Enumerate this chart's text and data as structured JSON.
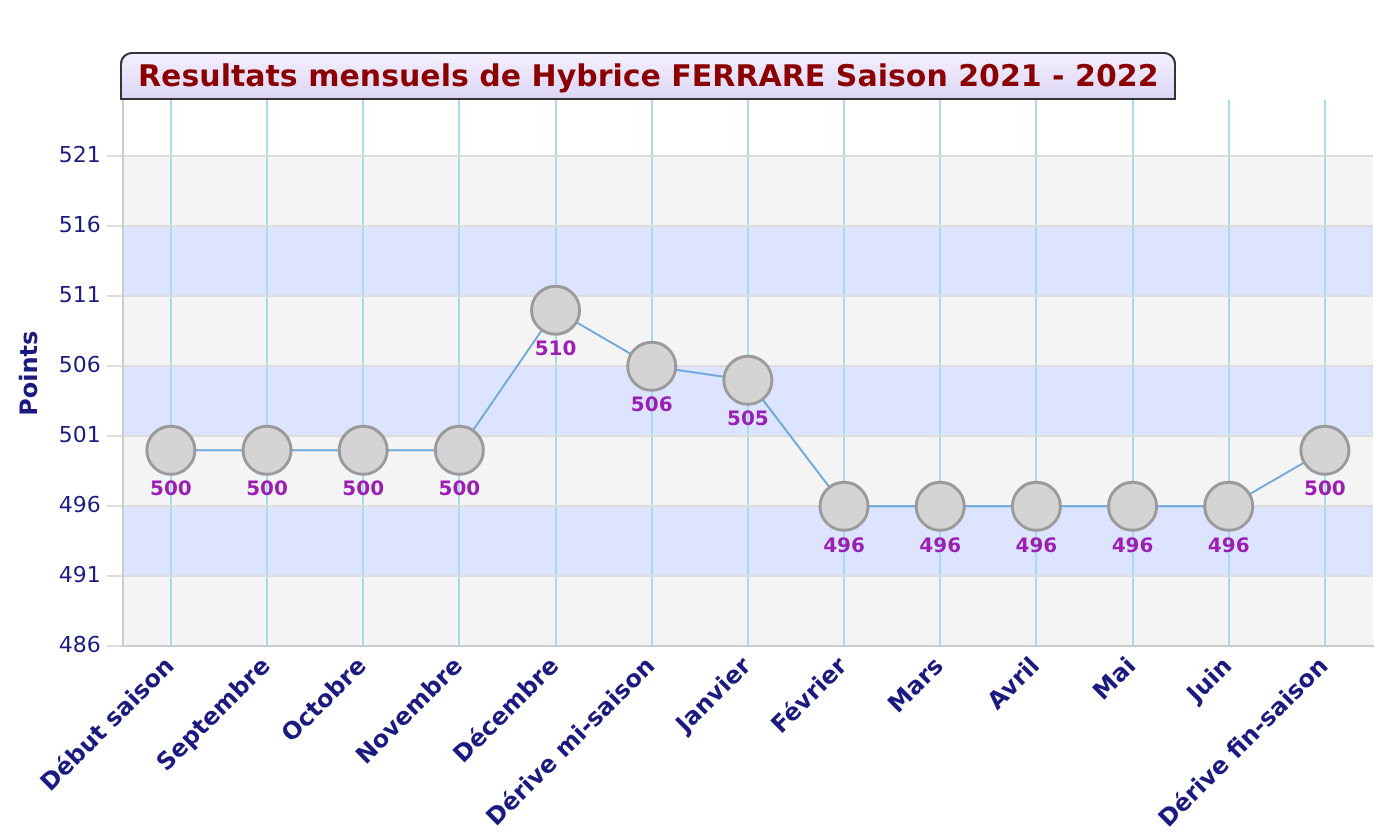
{
  "chart_data": {
    "type": "line",
    "title": "Resultats mensuels de Hybrice FERRARE Saison 2021 - 2022",
    "ylabel": "Points",
    "categories": [
      "Début saison",
      "Septembre",
      "Octobre",
      "Novembre",
      "Décembre",
      "Dérive mi-saison",
      "Janvier",
      "Février",
      "Mars",
      "Avril",
      "Mai",
      "Juin",
      "Dérive fin-saison"
    ],
    "series": [
      {
        "color": "#6fa8dc",
        "values": [
          500,
          500,
          500,
          500,
          510,
          506,
          505,
          496,
          496,
          496,
          496,
          496,
          500
        ]
      }
    ],
    "ylim": [
      486,
      525
    ],
    "yticks": [
      486,
      491,
      496,
      501,
      506,
      511,
      516,
      521
    ],
    "bands": [
      {
        "axis": "y",
        "from": 486,
        "to": 491,
        "color": "#f4f4f4"
      },
      {
        "axis": "y",
        "from": 491,
        "to": 496,
        "color": "#dde4ff"
      },
      {
        "axis": "y",
        "from": 496,
        "to": 501,
        "color": "#f4f4f4"
      },
      {
        "axis": "y",
        "from": 501,
        "to": 506,
        "color": "#dde4ff"
      },
      {
        "axis": "y",
        "from": 506,
        "to": 511,
        "color": "#f4f4f4"
      },
      {
        "axis": "y",
        "from": 511,
        "to": 516,
        "color": "#dde4ff"
      },
      {
        "axis": "y",
        "from": 516,
        "to": 521,
        "color": "#f4f4f4"
      }
    ],
    "grid": true,
    "marker": "circle",
    "line_style": "solid",
    "legend": false,
    "data_labels": true
  }
}
